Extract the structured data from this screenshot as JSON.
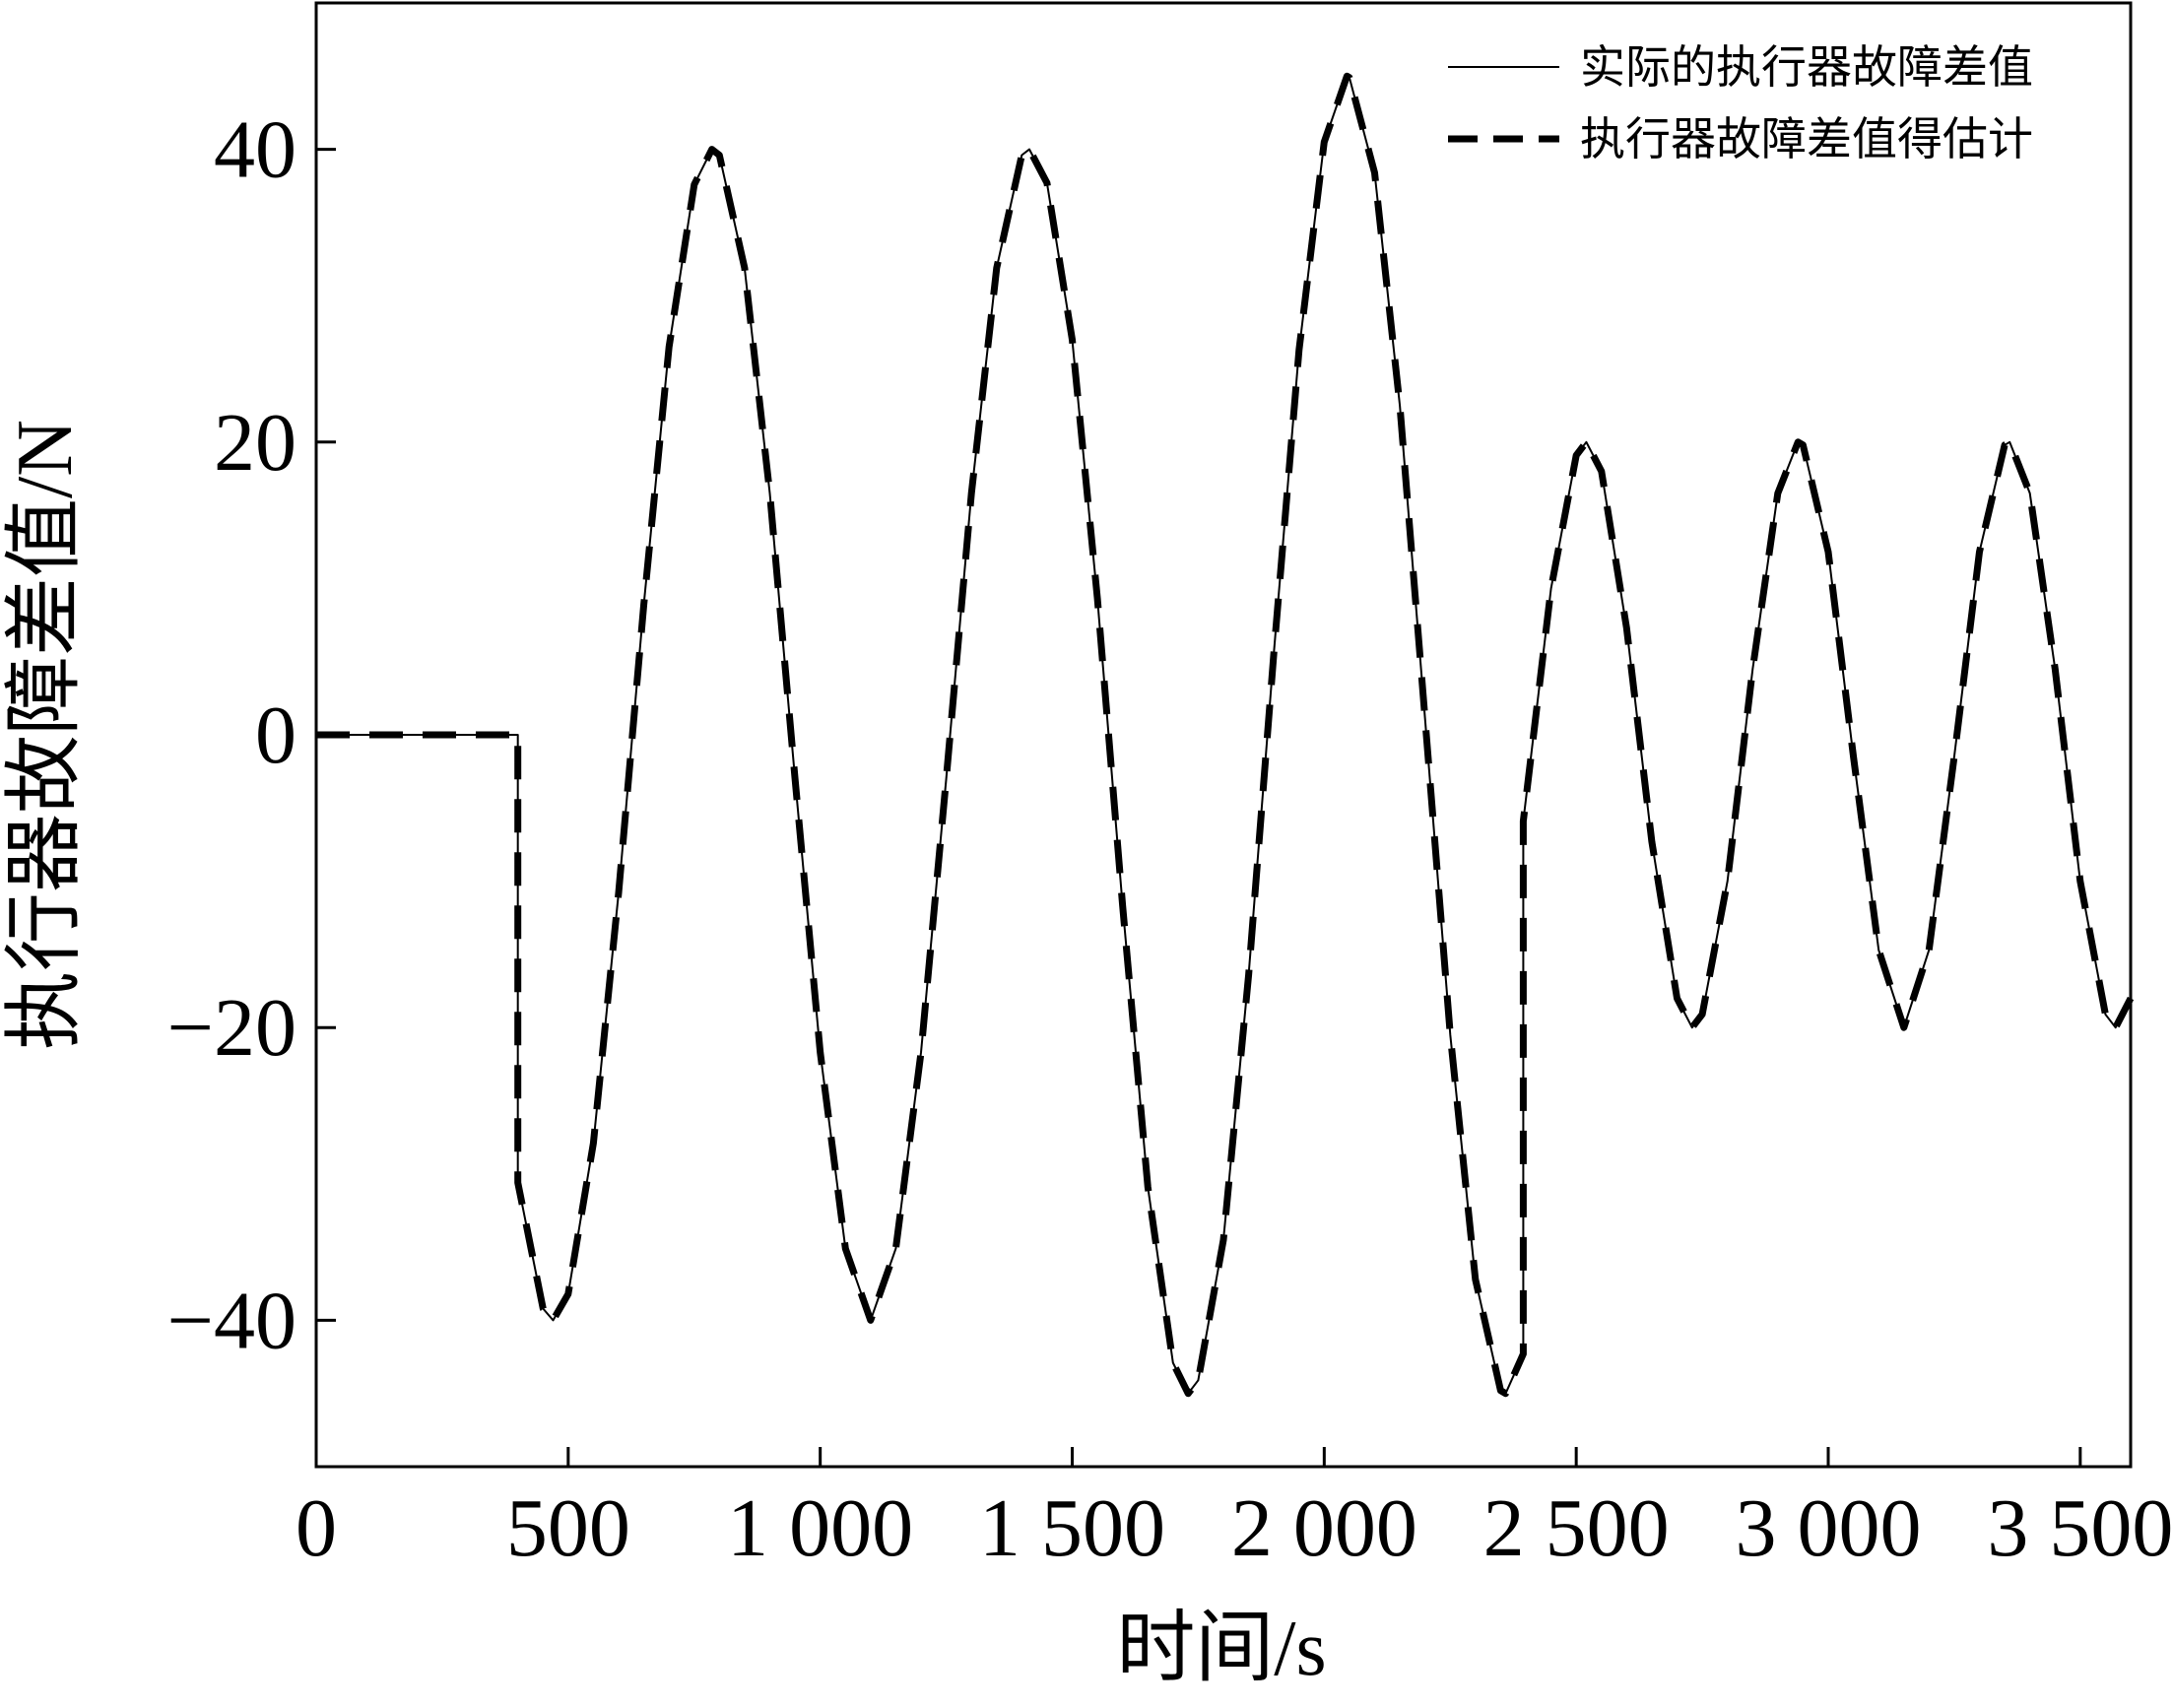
{
  "chart_data": {
    "type": "line",
    "x_label": "时间/s",
    "y_label": "执行器故障差值/N",
    "x": [
      0,
      400,
      400,
      450,
      470,
      500,
      550,
      600,
      650,
      700,
      750,
      785,
      800,
      850,
      900,
      950,
      1000,
      1050,
      1100,
      1150,
      1200,
      1250,
      1300,
      1350,
      1400,
      1415,
      1450,
      1500,
      1550,
      1600,
      1650,
      1700,
      1730,
      1750,
      1800,
      1850,
      1900,
      1950,
      2000,
      2045,
      2050,
      2100,
      2150,
      2200,
      2250,
      2300,
      2350,
      2360,
      2395,
      2395,
      2450,
      2500,
      2520,
      2550,
      2600,
      2650,
      2700,
      2730,
      2750,
      2800,
      2850,
      2900,
      2940,
      2950,
      3000,
      3050,
      3100,
      3150,
      3200,
      3250,
      3300,
      3350,
      3360,
      3400,
      3450,
      3500,
      3550,
      3570,
      3600
    ],
    "series": [
      {
        "name": "实际的执行器故障差值",
        "color": "#000000",
        "line_style": "solid",
        "values": [
          0,
          0,
          -30.6,
          -39.2,
          -40,
          -38.2,
          -27.9,
          -10.8,
          8.9,
          26.5,
          37.6,
          40,
          39.6,
          31.9,
          16.5,
          -3.0,
          -21.7,
          -35.1,
          -40,
          -35.1,
          -21.7,
          -3.0,
          16.5,
          31.9,
          39.6,
          40,
          37.7,
          27.0,
          9.3,
          -11.7,
          -30.9,
          -42.9,
          -45,
          -44.1,
          -34.5,
          -16.4,
          5.6,
          26.3,
          40.5,
          45,
          44.9,
          38.4,
          22.5,
          1.1,
          -20.5,
          -37.2,
          -44.8,
          -45,
          -42.3,
          -5.9,
          10,
          19.1,
          20,
          18.0,
          7.3,
          -7.3,
          -18.0,
          -20,
          -19.1,
          -10,
          4.5,
          16.5,
          20,
          19.8,
          12.5,
          -1.5,
          -14.7,
          -20,
          -14.7,
          -1.5,
          12.5,
          19.8,
          20,
          16.5,
          4.5,
          -10,
          -19.1,
          -20,
          -18.0
        ]
      },
      {
        "name": "执行器故障差值得估计",
        "color": "#000000",
        "line_style": "dashed",
        "values": [
          0,
          0,
          -30.6,
          -39.2,
          -40,
          -38.2,
          -27.9,
          -10.8,
          8.9,
          26.5,
          37.6,
          40,
          39.6,
          31.9,
          16.5,
          -3.0,
          -21.7,
          -35.1,
          -40,
          -35.1,
          -21.7,
          -3.0,
          16.5,
          31.9,
          39.6,
          40,
          37.7,
          27.0,
          9.3,
          -11.7,
          -30.9,
          -42.9,
          -45,
          -44.1,
          -34.5,
          -16.4,
          5.6,
          26.3,
          40.5,
          45,
          44.9,
          38.4,
          22.5,
          1.1,
          -20.5,
          -37.2,
          -44.8,
          -45,
          -42.3,
          -5.9,
          10,
          19.1,
          20,
          18.0,
          7.3,
          -7.3,
          -18.0,
          -20,
          -19.1,
          -10,
          4.5,
          16.5,
          20,
          19.8,
          12.5,
          -1.5,
          -14.7,
          -20,
          -14.7,
          -1.5,
          12.5,
          19.8,
          20,
          16.5,
          4.5,
          -10,
          -19.1,
          -20,
          -18.0
        ]
      }
    ],
    "xlim": [
      0,
      3600
    ],
    "ylim": [
      -50,
      50
    ],
    "xticks": [
      0,
      500,
      {
        "value": 1000,
        "label": "1 000"
      },
      {
        "value": 1500,
        "label": "1 500"
      },
      {
        "value": 2000,
        "label": "2 000"
      },
      {
        "value": 2500,
        "label": "2 500"
      },
      {
        "value": 3000,
        "label": "3 000"
      },
      {
        "value": 3500,
        "label": "3 500"
      }
    ],
    "yticks": [
      {
        "value": -40,
        "label": "−40"
      },
      {
        "value": -20,
        "label": "−20"
      },
      0,
      20,
      40
    ],
    "grid": false,
    "legend": "upper right"
  }
}
